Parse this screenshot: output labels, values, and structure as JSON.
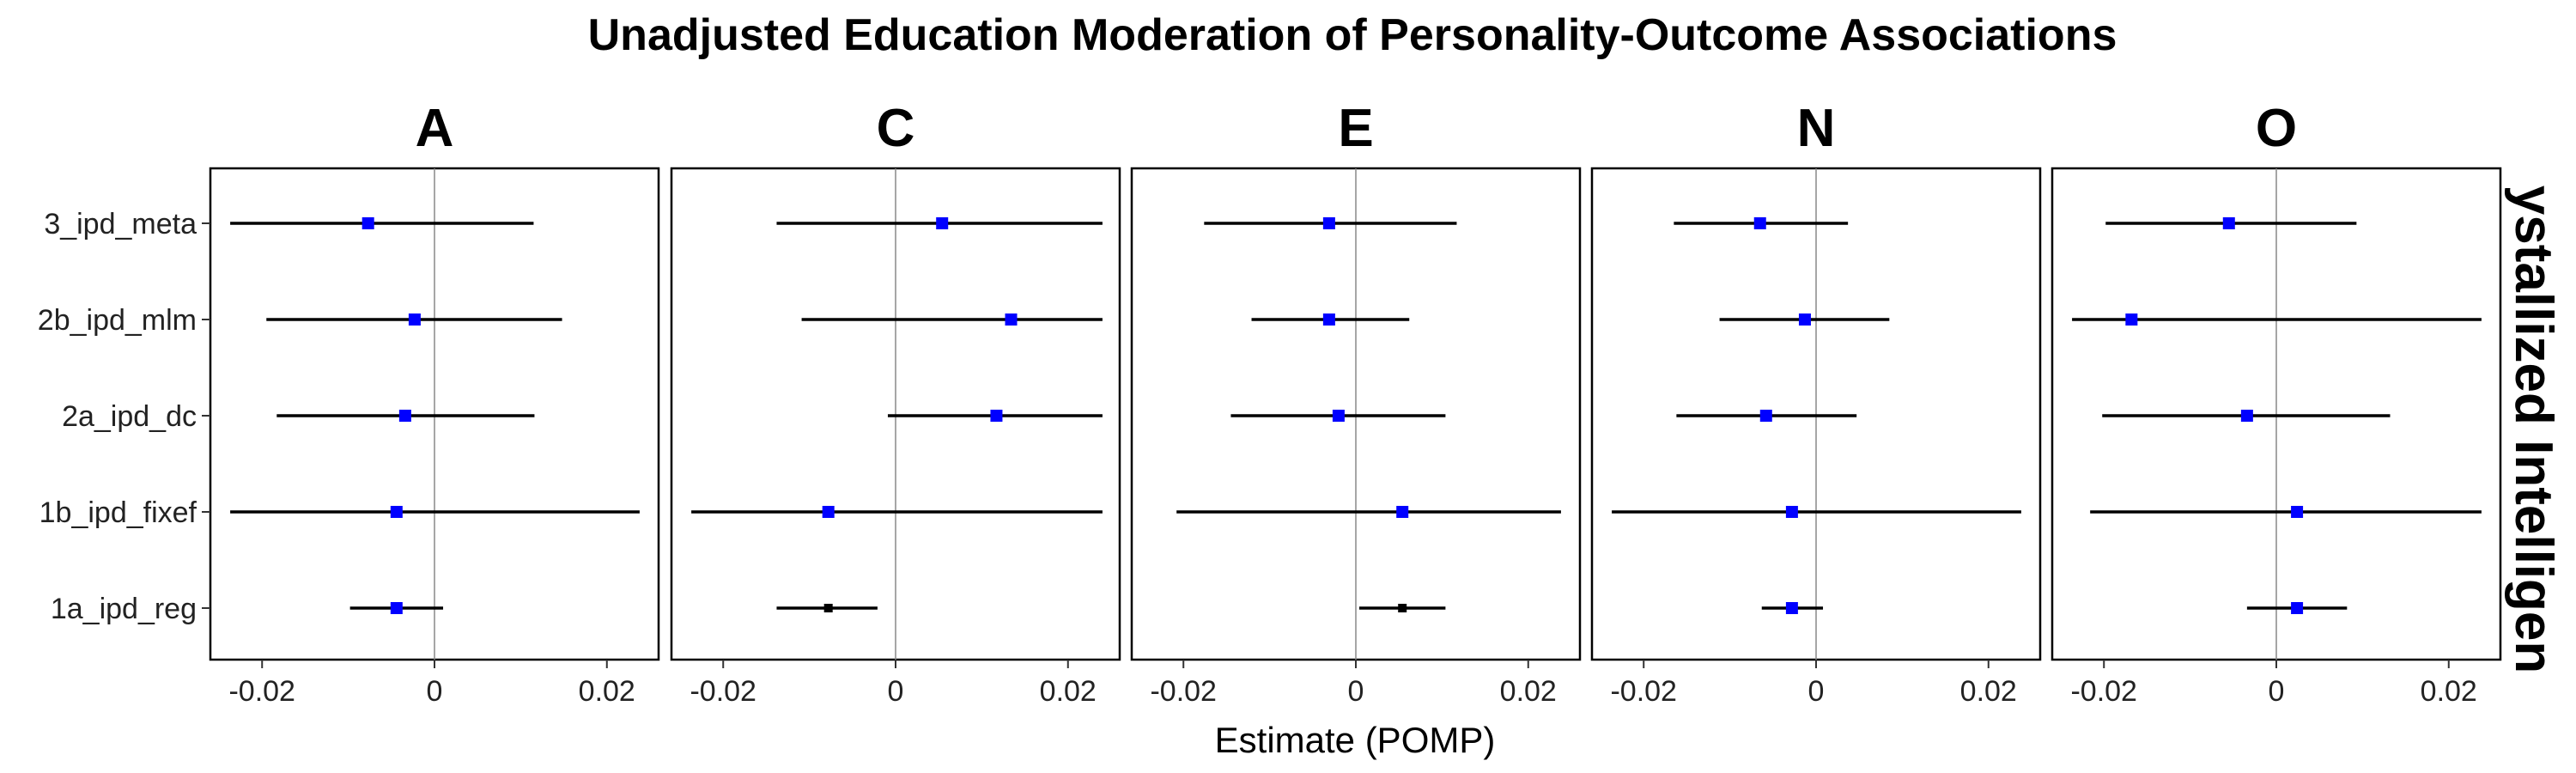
{
  "chart_data": {
    "type": "forest",
    "title": "Unadjusted Education Moderation of Personality-Outcome Associations",
    "xlabel": "Estimate (POMP)",
    "ylabel": "",
    "right_strip_label": "ystallized Intelligen",
    "facets": [
      "A",
      "C",
      "E",
      "N",
      "O"
    ],
    "categories": [
      "3_ipd_meta",
      "2b_ipd_mlm",
      "2a_ipd_dc",
      "1b_ipd_fixef",
      "1a_ipd_reg"
    ],
    "x_ticks": [
      -0.02,
      0,
      0.02
    ],
    "x_tick_labels": [
      "-0.02",
      "0",
      "0.02"
    ],
    "xlim": [
      -0.026,
      0.026
    ],
    "colors": {
      "significant": "#000000",
      "nonsignificant": "#0000ff",
      "line": "#000000",
      "zero_line": "#888888"
    },
    "series": [
      {
        "facet": "A",
        "points": [
          {
            "model": "3_ipd_meta",
            "estimate": -0.0077,
            "lower": -0.0237,
            "upper": 0.0115,
            "point_color": "#0000ff"
          },
          {
            "model": "2b_ipd_mlm",
            "estimate": -0.0023,
            "lower": -0.0195,
            "upper": 0.0148,
            "point_color": "#0000ff"
          },
          {
            "model": "2a_ipd_dc",
            "estimate": -0.0034,
            "lower": -0.0183,
            "upper": 0.0116,
            "point_color": "#0000ff"
          },
          {
            "model": "1b_ipd_fixef",
            "estimate": -0.0044,
            "lower": -0.0237,
            "upper": 0.0238,
            "point_color": "#0000ff"
          },
          {
            "model": "1a_ipd_reg",
            "estimate": -0.0044,
            "lower": -0.0098,
            "upper": 0.001,
            "point_color": "#0000ff"
          }
        ]
      },
      {
        "facet": "C",
        "points": [
          {
            "model": "3_ipd_meta",
            "estimate": 0.0054,
            "lower": -0.0138,
            "upper": 0.024,
            "point_color": "#0000ff"
          },
          {
            "model": "2b_ipd_mlm",
            "estimate": 0.0134,
            "lower": -0.0109,
            "upper": 0.024,
            "point_color": "#0000ff"
          },
          {
            "model": "2a_ipd_dc",
            "estimate": 0.0117,
            "lower": -0.0009,
            "upper": 0.024,
            "point_color": "#0000ff"
          },
          {
            "model": "1b_ipd_fixef",
            "estimate": -0.0078,
            "lower": -0.0237,
            "upper": 0.024,
            "point_color": "#0000ff"
          },
          {
            "model": "1a_ipd_reg",
            "estimate": -0.0078,
            "lower": -0.0138,
            "upper": -0.0021,
            "point_color": "#000000"
          }
        ]
      },
      {
        "facet": "E",
        "points": [
          {
            "model": "3_ipd_meta",
            "estimate": -0.0031,
            "lower": -0.0176,
            "upper": 0.0117,
            "point_color": "#0000ff"
          },
          {
            "model": "2b_ipd_mlm",
            "estimate": -0.0031,
            "lower": -0.0121,
            "upper": 0.0062,
            "point_color": "#0000ff"
          },
          {
            "model": "2a_ipd_dc",
            "estimate": -0.002,
            "lower": -0.0145,
            "upper": 0.0104,
            "point_color": "#0000ff"
          },
          {
            "model": "1b_ipd_fixef",
            "estimate": 0.0054,
            "lower": -0.0208,
            "upper": 0.0238,
            "point_color": "#0000ff"
          },
          {
            "model": "1a_ipd_reg",
            "estimate": 0.0054,
            "lower": 0.0004,
            "upper": 0.0104,
            "point_color": "#000000"
          }
        ]
      },
      {
        "facet": "N",
        "points": [
          {
            "model": "3_ipd_meta",
            "estimate": -0.0065,
            "lower": -0.0165,
            "upper": 0.0037,
            "point_color": "#0000ff"
          },
          {
            "model": "2b_ipd_mlm",
            "estimate": -0.0013,
            "lower": -0.0112,
            "upper": 0.0085,
            "point_color": "#0000ff"
          },
          {
            "model": "2a_ipd_dc",
            "estimate": -0.0058,
            "lower": -0.0162,
            "upper": 0.0047,
            "point_color": "#0000ff"
          },
          {
            "model": "1b_ipd_fixef",
            "estimate": -0.0028,
            "lower": -0.0237,
            "upper": 0.0238,
            "point_color": "#0000ff"
          },
          {
            "model": "1a_ipd_reg",
            "estimate": -0.0028,
            "lower": -0.0063,
            "upper": 0.0008,
            "point_color": "#0000ff"
          }
        ]
      },
      {
        "facet": "O",
        "points": [
          {
            "model": "3_ipd_meta",
            "estimate": -0.0055,
            "lower": -0.0198,
            "upper": 0.0093,
            "point_color": "#0000ff"
          },
          {
            "model": "2b_ipd_mlm",
            "estimate": -0.0168,
            "lower": -0.0237,
            "upper": 0.0238,
            "point_color": "#0000ff"
          },
          {
            "model": "2a_ipd_dc",
            "estimate": -0.0034,
            "lower": -0.0202,
            "upper": 0.0132,
            "point_color": "#0000ff"
          },
          {
            "model": "1b_ipd_fixef",
            "estimate": 0.0024,
            "lower": -0.0216,
            "upper": 0.0238,
            "point_color": "#0000ff"
          },
          {
            "model": "1a_ipd_reg",
            "estimate": 0.0024,
            "lower": -0.0034,
            "upper": 0.0082,
            "point_color": "#0000ff"
          }
        ]
      }
    ],
    "grid": false,
    "legend": "none"
  }
}
